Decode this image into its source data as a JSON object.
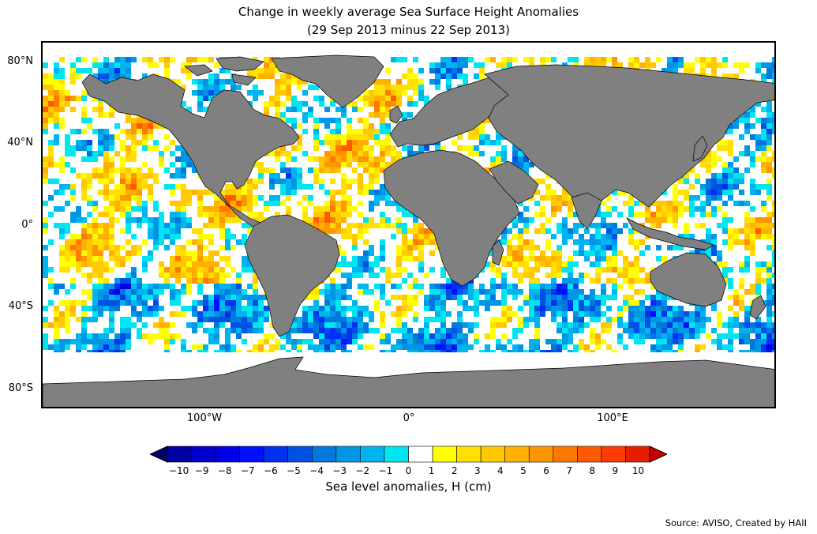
{
  "title_line1": "Change in weekly average Sea Surface Height Anomalies",
  "title_line2": "(29 Sep 2013 minus 22 Sep 2013)",
  "map": {
    "projection": "equirectangular",
    "lon_range": [
      -180,
      180
    ],
    "lat_range": [
      -90,
      90
    ],
    "land_color": "#808080",
    "no_data_color": "#ffffff",
    "lat_labels": [
      "80°N",
      "40°N",
      "0°",
      "40°S",
      "80°S"
    ],
    "lon_labels": [
      "100°W",
      "0°",
      "100°E"
    ]
  },
  "colorbar": {
    "label": "Sea level anomalies, H (cm)",
    "ticks": [
      "−10",
      "−9",
      "−8",
      "−7",
      "−6",
      "−5",
      "−4",
      "−3",
      "−2",
      "−1",
      "0",
      "1",
      "2",
      "3",
      "4",
      "5",
      "6",
      "7",
      "8",
      "9",
      "10"
    ],
    "colors": [
      "#000066",
      "#0000a0",
      "#0000cc",
      "#0000e6",
      "#0010ff",
      "#0030f0",
      "#0050e6",
      "#0078dc",
      "#0096e6",
      "#00b4f0",
      "#00e6f0",
      "#ffffff",
      "#ffff00",
      "#ffe000",
      "#ffc800",
      "#ffb000",
      "#ff9600",
      "#ff7800",
      "#ff5a00",
      "#ff3c00",
      "#e61e00",
      "#c80000"
    ]
  },
  "source": "Source: AVISO, Created by HAII"
}
